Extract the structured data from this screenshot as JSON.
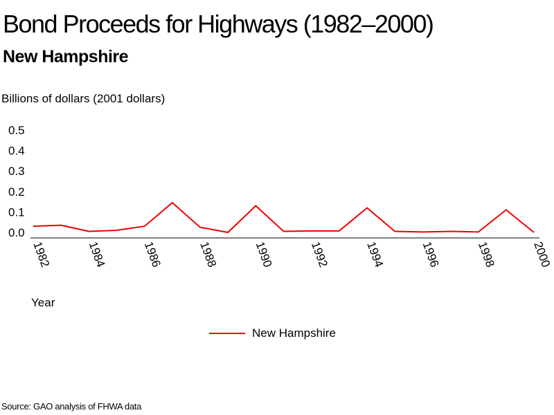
{
  "title": "Bond Proceeds for Highways (1982–2000)",
  "subtitle": "New Hampshire",
  "source": "Source: GAO analysis of FHWA data",
  "colors": {
    "series": "#ee0000",
    "axis": "#000000"
  },
  "chart_data": {
    "type": "line",
    "title": "Bond Proceeds for Highways (1982–2000)",
    "subtitle": "New Hampshire",
    "xlabel": "Year",
    "ylabel": "Billions of dollars (2001 dollars)",
    "x": [
      1982,
      1983,
      1984,
      1985,
      1986,
      1987,
      1988,
      1989,
      1990,
      1991,
      1992,
      1993,
      1994,
      1995,
      1996,
      1997,
      1998,
      1999,
      2000
    ],
    "series": [
      {
        "name": "New Hampshire",
        "values": [
          0.03,
          0.035,
          0.005,
          0.01,
          0.03,
          0.145,
          0.025,
          0.0,
          0.13,
          0.005,
          0.007,
          0.007,
          0.12,
          0.005,
          0.002,
          0.005,
          0.002,
          0.11,
          0.0
        ]
      }
    ],
    "xlim": [
      1982,
      2000
    ],
    "ylim": [
      0,
      0.5
    ],
    "y_ticks": [
      "0.0",
      "0.1",
      "0.2",
      "0.3",
      "0.4",
      "0.5"
    ],
    "x_ticks": [
      "1982",
      "1984",
      "1986",
      "1988",
      "1990",
      "1992",
      "1994",
      "1996",
      "1998",
      "2000"
    ],
    "grid": false,
    "legend": "bottom-center"
  }
}
